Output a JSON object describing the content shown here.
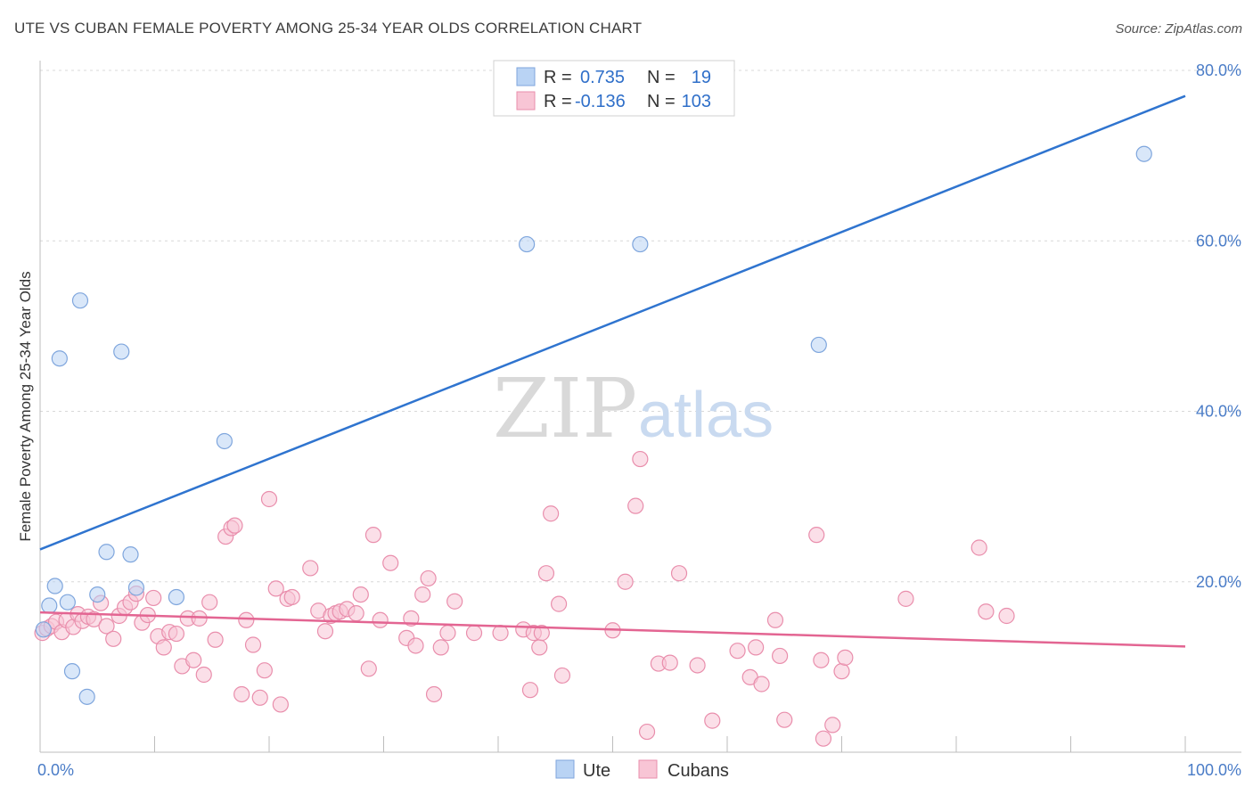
{
  "title": "UTE VS CUBAN FEMALE POVERTY AMONG 25-34 YEAR OLDS CORRELATION CHART",
  "source": "Source: ZipAtlas.com",
  "watermark": {
    "zip": "ZIP",
    "atlas": "atlas"
  },
  "legend": {
    "rows": [
      {
        "r_label": "R =",
        "r_value": "0.735",
        "n_label": "N =",
        "n_value": "19",
        "color": "#b9d3f4",
        "stroke": "#7fa6dd"
      },
      {
        "r_label": "R =",
        "r_value": "-0.136",
        "n_label": "N =",
        "n_value": "103",
        "color": "#f8c5d5",
        "stroke": "#e98eac"
      }
    ]
  },
  "chart_data": {
    "type": "scatter",
    "title": "UTE VS CUBAN FEMALE POVERTY AMONG 25-34 YEAR OLDS CORRELATION CHART",
    "xlabel": "",
    "ylabel": "Female Poverty Among 25-34 Year Olds",
    "xlim": [
      0,
      100
    ],
    "ylim": [
      0,
      80
    ],
    "y_ticks": [
      20,
      40,
      60,
      80
    ],
    "y_tick_labels": [
      "20.0%",
      "40.0%",
      "60.0%",
      "80.0%"
    ],
    "x_tick_labels": [
      "0.0%",
      "100.0%"
    ],
    "grid": true,
    "series": [
      {
        "name": "Ute",
        "color": "#b9d3f4",
        "stroke": "#7fa6dd",
        "line_color": "#2f74cf",
        "trend": {
          "x": [
            0,
            100
          ],
          "y": [
            23.8,
            77.0
          ]
        },
        "points": [
          [
            0.3,
            14.4
          ],
          [
            0.8,
            17.2
          ],
          [
            1.3,
            19.5
          ],
          [
            1.7,
            46.2
          ],
          [
            2.4,
            17.6
          ],
          [
            2.8,
            9.5
          ],
          [
            3.5,
            53.0
          ],
          [
            4.1,
            6.5
          ],
          [
            5.0,
            18.5
          ],
          [
            5.8,
            23.5
          ],
          [
            7.1,
            47.0
          ],
          [
            7.9,
            23.2
          ],
          [
            8.4,
            19.3
          ],
          [
            11.9,
            18.2
          ],
          [
            16.1,
            36.5
          ],
          [
            42.5,
            59.6
          ],
          [
            52.4,
            59.6
          ],
          [
            68.0,
            47.8
          ],
          [
            96.4,
            70.2
          ]
        ]
      },
      {
        "name": "Cubans",
        "color": "#f8c5d5",
        "stroke": "#e98eac",
        "line_color": "#e36592",
        "trend": {
          "x": [
            0,
            100
          ],
          "y": [
            16.4,
            12.4
          ]
        },
        "points": [
          [
            0.2,
            14.0
          ],
          [
            0.6,
            14.5
          ],
          [
            1.0,
            14.8
          ],
          [
            1.4,
            15.3
          ],
          [
            1.9,
            14.1
          ],
          [
            2.3,
            15.5
          ],
          [
            2.9,
            14.7
          ],
          [
            3.3,
            16.2
          ],
          [
            3.7,
            15.4
          ],
          [
            4.2,
            15.9
          ],
          [
            4.7,
            15.6
          ],
          [
            5.3,
            17.5
          ],
          [
            5.8,
            14.8
          ],
          [
            6.4,
            13.3
          ],
          [
            6.9,
            16.0
          ],
          [
            7.4,
            17.0
          ],
          [
            7.9,
            17.6
          ],
          [
            8.4,
            18.6
          ],
          [
            8.9,
            15.2
          ],
          [
            9.4,
            16.1
          ],
          [
            9.9,
            18.1
          ],
          [
            10.3,
            13.6
          ],
          [
            10.8,
            12.3
          ],
          [
            11.3,
            14.1
          ],
          [
            11.9,
            13.9
          ],
          [
            12.4,
            10.1
          ],
          [
            12.9,
            15.7
          ],
          [
            13.4,
            10.8
          ],
          [
            13.9,
            15.7
          ],
          [
            14.3,
            9.1
          ],
          [
            14.8,
            17.6
          ],
          [
            15.3,
            13.2
          ],
          [
            16.2,
            25.3
          ],
          [
            16.7,
            26.3
          ],
          [
            17.0,
            26.6
          ],
          [
            17.6,
            6.8
          ],
          [
            18.0,
            15.5
          ],
          [
            18.6,
            12.6
          ],
          [
            19.2,
            6.4
          ],
          [
            19.6,
            9.6
          ],
          [
            20.0,
            29.7
          ],
          [
            20.6,
            19.2
          ],
          [
            21.0,
            5.6
          ],
          [
            21.6,
            18.0
          ],
          [
            22.0,
            18.2
          ],
          [
            23.6,
            21.6
          ],
          [
            24.3,
            16.6
          ],
          [
            24.9,
            14.2
          ],
          [
            25.4,
            16.0
          ],
          [
            25.8,
            16.3
          ],
          [
            26.2,
            16.5
          ],
          [
            26.8,
            16.8
          ],
          [
            27.6,
            16.3
          ],
          [
            28.0,
            18.5
          ],
          [
            28.7,
            9.8
          ],
          [
            29.1,
            25.5
          ],
          [
            29.7,
            15.5
          ],
          [
            30.6,
            22.2
          ],
          [
            32.0,
            13.4
          ],
          [
            32.4,
            15.7
          ],
          [
            32.8,
            12.5
          ],
          [
            33.4,
            18.5
          ],
          [
            33.9,
            20.4
          ],
          [
            34.4,
            6.8
          ],
          [
            35.0,
            12.3
          ],
          [
            35.6,
            14.0
          ],
          [
            36.2,
            17.7
          ],
          [
            37.9,
            14.0
          ],
          [
            40.2,
            14.0
          ],
          [
            42.2,
            14.4
          ],
          [
            42.8,
            7.3
          ],
          [
            43.1,
            14.0
          ],
          [
            43.6,
            12.3
          ],
          [
            43.8,
            14.0
          ],
          [
            44.2,
            21.0
          ],
          [
            44.6,
            28.0
          ],
          [
            45.3,
            17.4
          ],
          [
            45.6,
            9.0
          ],
          [
            50.0,
            14.3
          ],
          [
            51.1,
            20.0
          ],
          [
            52.0,
            28.9
          ],
          [
            52.4,
            34.4
          ],
          [
            53.0,
            2.4
          ],
          [
            54.0,
            10.4
          ],
          [
            55.0,
            10.5
          ],
          [
            55.8,
            21.0
          ],
          [
            57.4,
            10.2
          ],
          [
            58.7,
            3.7
          ],
          [
            60.9,
            11.9
          ],
          [
            62.0,
            8.8
          ],
          [
            62.5,
            12.3
          ],
          [
            63.0,
            8.0
          ],
          [
            64.2,
            15.5
          ],
          [
            64.6,
            11.3
          ],
          [
            65.0,
            3.8
          ],
          [
            67.8,
            25.5
          ],
          [
            68.2,
            10.8
          ],
          [
            68.4,
            1.6
          ],
          [
            69.2,
            3.2
          ],
          [
            70.0,
            9.5
          ],
          [
            70.3,
            11.1
          ],
          [
            75.6,
            18.0
          ],
          [
            82.0,
            24.0
          ],
          [
            82.6,
            16.5
          ],
          [
            84.4,
            16.0
          ]
        ]
      }
    ]
  },
  "bottom_legend": [
    {
      "label": "Ute",
      "color": "#b9d3f4",
      "stroke": "#7fa6dd"
    },
    {
      "label": "Cubans",
      "color": "#f8c5d5",
      "stroke": "#e98eac"
    }
  ]
}
